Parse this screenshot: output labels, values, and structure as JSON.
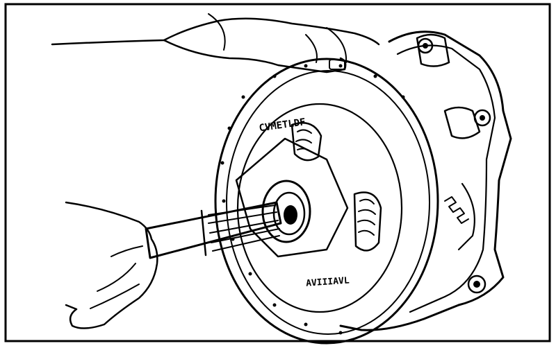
{
  "illustration": {
    "subject": "clutch-alignment-illustration",
    "colors": {
      "ink": "#000000",
      "paper": "#ffffff"
    },
    "disc_markings": {
      "upper": "CVMETLDF",
      "lower": "AVIIIAVL"
    }
  }
}
